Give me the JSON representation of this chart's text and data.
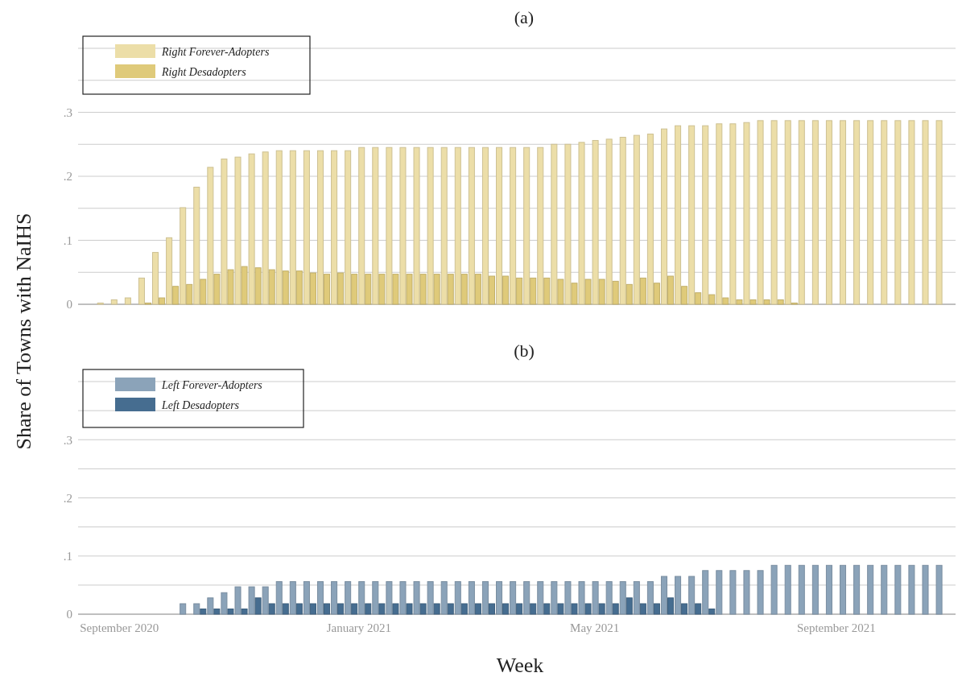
{
  "chart_data": [
    {
      "type": "bar",
      "title": "(a)",
      "ylabel": "Share of Towns with NaIHS",
      "x": [
        "2020-08-24",
        "2020-08-31",
        "2020-09-07",
        "2020-09-14",
        "2020-09-21",
        "2020-09-28",
        "2020-10-05",
        "2020-10-12",
        "2020-10-19",
        "2020-10-26",
        "2020-11-02",
        "2020-11-09",
        "2020-11-16",
        "2020-11-23",
        "2020-11-30",
        "2020-12-07",
        "2020-12-14",
        "2020-12-21",
        "2020-12-28",
        "2021-01-04",
        "2021-01-11",
        "2021-01-18",
        "2021-01-25",
        "2021-02-01",
        "2021-02-08",
        "2021-02-15",
        "2021-02-22",
        "2021-03-01",
        "2021-03-08",
        "2021-03-15",
        "2021-03-22",
        "2021-03-29",
        "2021-04-05",
        "2021-04-12",
        "2021-04-19",
        "2021-04-26",
        "2021-05-03",
        "2021-05-10",
        "2021-05-17",
        "2021-05-24",
        "2021-05-31",
        "2021-06-07",
        "2021-06-14",
        "2021-06-21",
        "2021-06-28",
        "2021-07-05",
        "2021-07-12",
        "2021-07-19",
        "2021-07-26",
        "2021-08-02",
        "2021-08-09",
        "2021-08-16",
        "2021-08-23",
        "2021-08-30",
        "2021-09-06",
        "2021-09-13",
        "2021-09-20",
        "2021-09-27",
        "2021-10-04",
        "2021-10-11",
        "2021-10-18",
        "2021-10-25"
      ],
      "series": [
        {
          "name": "Right Forever-Adopters",
          "color": "#ecdea8",
          "values": [
            0.002,
            0.007,
            0.01,
            0.041,
            0.081,
            0.104,
            0.151,
            0.183,
            0.214,
            0.227,
            0.23,
            0.235,
            0.238,
            0.24,
            0.24,
            0.24,
            0.24,
            0.24,
            0.24,
            0.245,
            0.245,
            0.245,
            0.245,
            0.245,
            0.245,
            0.245,
            0.245,
            0.245,
            0.245,
            0.245,
            0.245,
            0.245,
            0.245,
            0.25,
            0.25,
            0.253,
            0.256,
            0.258,
            0.261,
            0.264,
            0.266,
            0.274,
            0.279,
            0.279,
            0.279,
            0.282,
            0.282,
            0.284,
            0.287,
            0.287,
            0.287,
            0.287,
            0.287,
            0.287,
            0.287,
            0.287,
            0.287,
            0.287,
            0.287,
            0.287,
            0.287,
            0.287
          ]
        },
        {
          "name": "Right Desadopters",
          "color": "#dfca7a",
          "values": [
            0,
            0,
            0,
            0.002,
            0.01,
            0.028,
            0.031,
            0.039,
            0.047,
            0.054,
            0.059,
            0.057,
            0.054,
            0.052,
            0.052,
            0.049,
            0.047,
            0.049,
            0.047,
            0.047,
            0.047,
            0.047,
            0.047,
            0.047,
            0.047,
            0.047,
            0.047,
            0.047,
            0.044,
            0.044,
            0.041,
            0.041,
            0.041,
            0.039,
            0.033,
            0.039,
            0.039,
            0.036,
            0.031,
            0.041,
            0.033,
            0.044,
            0.028,
            0.018,
            0.015,
            0.01,
            0.007,
            0.007,
            0.007,
            0.007,
            0.002,
            0,
            0,
            0,
            0,
            0,
            0,
            0,
            0,
            0,
            0,
            0
          ]
        }
      ],
      "xlim": [
        "2020-08-11",
        "2021-11-04"
      ],
      "ylim": [
        0,
        0.4
      ],
      "yticks": [
        0,
        {
          "value": 0.05,
          "label": null
        },
        {
          "value": 0.1,
          "label": ".1"
        },
        {
          "value": 0.15,
          "label": null
        },
        {
          "value": 0.2,
          "label": ".2"
        },
        {
          "value": 0.25,
          "label": null
        },
        {
          "value": 0.3,
          "label": ".3"
        },
        {
          "value": 0.35,
          "label": null
        },
        {
          "value": 0.4,
          "label": null
        }
      ],
      "grid": "y",
      "legend": "top left",
      "tick_labels": "y"
    },
    {
      "type": "bar",
      "title": "(b)",
      "xlabel": "Week",
      "x": [
        "2020-08-24",
        "2020-08-31",
        "2020-09-07",
        "2020-09-14",
        "2020-09-21",
        "2020-09-28",
        "2020-10-05",
        "2020-10-12",
        "2020-10-19",
        "2020-10-26",
        "2020-11-02",
        "2020-11-09",
        "2020-11-16",
        "2020-11-23",
        "2020-11-30",
        "2020-12-07",
        "2020-12-14",
        "2020-12-21",
        "2020-12-28",
        "2021-01-04",
        "2021-01-11",
        "2021-01-18",
        "2021-01-25",
        "2021-02-01",
        "2021-02-08",
        "2021-02-15",
        "2021-02-22",
        "2021-03-01",
        "2021-03-08",
        "2021-03-15",
        "2021-03-22",
        "2021-03-29",
        "2021-04-05",
        "2021-04-12",
        "2021-04-19",
        "2021-04-26",
        "2021-05-03",
        "2021-05-10",
        "2021-05-17",
        "2021-05-24",
        "2021-05-31",
        "2021-06-07",
        "2021-06-14",
        "2021-06-21",
        "2021-06-28",
        "2021-07-05",
        "2021-07-12",
        "2021-07-19",
        "2021-07-26",
        "2021-08-02",
        "2021-08-09",
        "2021-08-16",
        "2021-08-23",
        "2021-08-30",
        "2021-09-06",
        "2021-09-13",
        "2021-09-20",
        "2021-09-27",
        "2021-10-04",
        "2021-10-11",
        "2021-10-18",
        "2021-10-25"
      ],
      "series": [
        {
          "name": "Left Forever-Adopters",
          "color": "#8ba3b9",
          "values": [
            0,
            0,
            0,
            0,
            0,
            0,
            0.018,
            0.018,
            0.028,
            0.037,
            0.047,
            0.047,
            0.047,
            0.056,
            0.056,
            0.056,
            0.056,
            0.056,
            0.056,
            0.056,
            0.056,
            0.056,
            0.056,
            0.056,
            0.056,
            0.056,
            0.056,
            0.056,
            0.056,
            0.056,
            0.056,
            0.056,
            0.056,
            0.056,
            0.056,
            0.056,
            0.056,
            0.056,
            0.056,
            0.056,
            0.056,
            0.065,
            0.065,
            0.065,
            0.075,
            0.075,
            0.075,
            0.075,
            0.075,
            0.084,
            0.084,
            0.084,
            0.084,
            0.084,
            0.084,
            0.084,
            0.084,
            0.084,
            0.084,
            0.084,
            0.084,
            0.084
          ]
        },
        {
          "name": "Left Desadopters",
          "color": "#466d90",
          "values": [
            0,
            0,
            0,
            0,
            0,
            0,
            0,
            0.009,
            0.009,
            0.009,
            0.009,
            0.028,
            0.018,
            0.018,
            0.018,
            0.018,
            0.018,
            0.018,
            0.018,
            0.018,
            0.018,
            0.018,
            0.018,
            0.018,
            0.018,
            0.018,
            0.018,
            0.018,
            0.018,
            0.018,
            0.018,
            0.018,
            0.018,
            0.018,
            0.018,
            0.018,
            0.018,
            0.018,
            0.028,
            0.018,
            0.018,
            0.028,
            0.018,
            0.018,
            0.009,
            0,
            0,
            0,
            0,
            0,
            0,
            0,
            0,
            0,
            0,
            0,
            0,
            0,
            0,
            0,
            0,
            0
          ]
        }
      ],
      "xlim": [
        "2020-08-11",
        "2021-11-04"
      ],
      "xticks": [
        {
          "value": "2020-09-01",
          "label": "September 2020"
        },
        {
          "value": "2021-01-01",
          "label": "January 2021"
        },
        {
          "value": "2021-05-01",
          "label": "May 2021"
        },
        {
          "value": "2021-09-01",
          "label": "September 2021"
        }
      ],
      "ylim": [
        0,
        0.4
      ],
      "yticks": [
        0,
        {
          "value": 0.05,
          "label": null
        },
        {
          "value": 0.1,
          "label": ".1"
        },
        {
          "value": 0.15,
          "label": null
        },
        {
          "value": 0.2,
          "label": ".2"
        },
        {
          "value": 0.25,
          "label": null
        },
        {
          "value": 0.3,
          "label": ".3"
        },
        {
          "value": 0.35,
          "label": null
        },
        {
          "value": 0.4,
          "label": null
        }
      ],
      "grid": "y",
      "legend": "top left"
    }
  ]
}
